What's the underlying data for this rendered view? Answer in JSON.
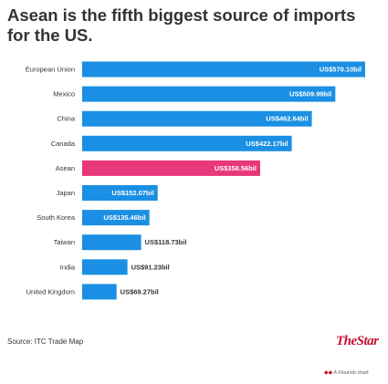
{
  "title": "Asean is the fifth biggest source of imports for the US.",
  "source": "Source: ITC Trade Map",
  "brand": "TheStar",
  "credit": "A Flourish chart",
  "colors": {
    "default": "#1a8fe3",
    "highlight": "#e8377a"
  },
  "chart_data": {
    "type": "bar",
    "orientation": "horizontal",
    "categories": [
      "European Union",
      "Mexico",
      "China",
      "Canada",
      "Asean",
      "Japan",
      "South Korea",
      "Taiwan",
      "India",
      "United Kingdom"
    ],
    "values": [
      570.1,
      509.99,
      462.64,
      422.17,
      358.56,
      152.07,
      135.46,
      118.73,
      91.23,
      69.27
    ],
    "labels": [
      "US$570.10bil",
      "US$509.99bil",
      "US$462.64bil",
      "US$422.17bil",
      "US$358.56bil",
      "US$152.07bil",
      "US$135.46bil",
      "US$118.73bil",
      "US$91.23bil",
      "US$69.27bil"
    ],
    "highlight": "Asean",
    "xlim": [
      0,
      570.1
    ]
  }
}
